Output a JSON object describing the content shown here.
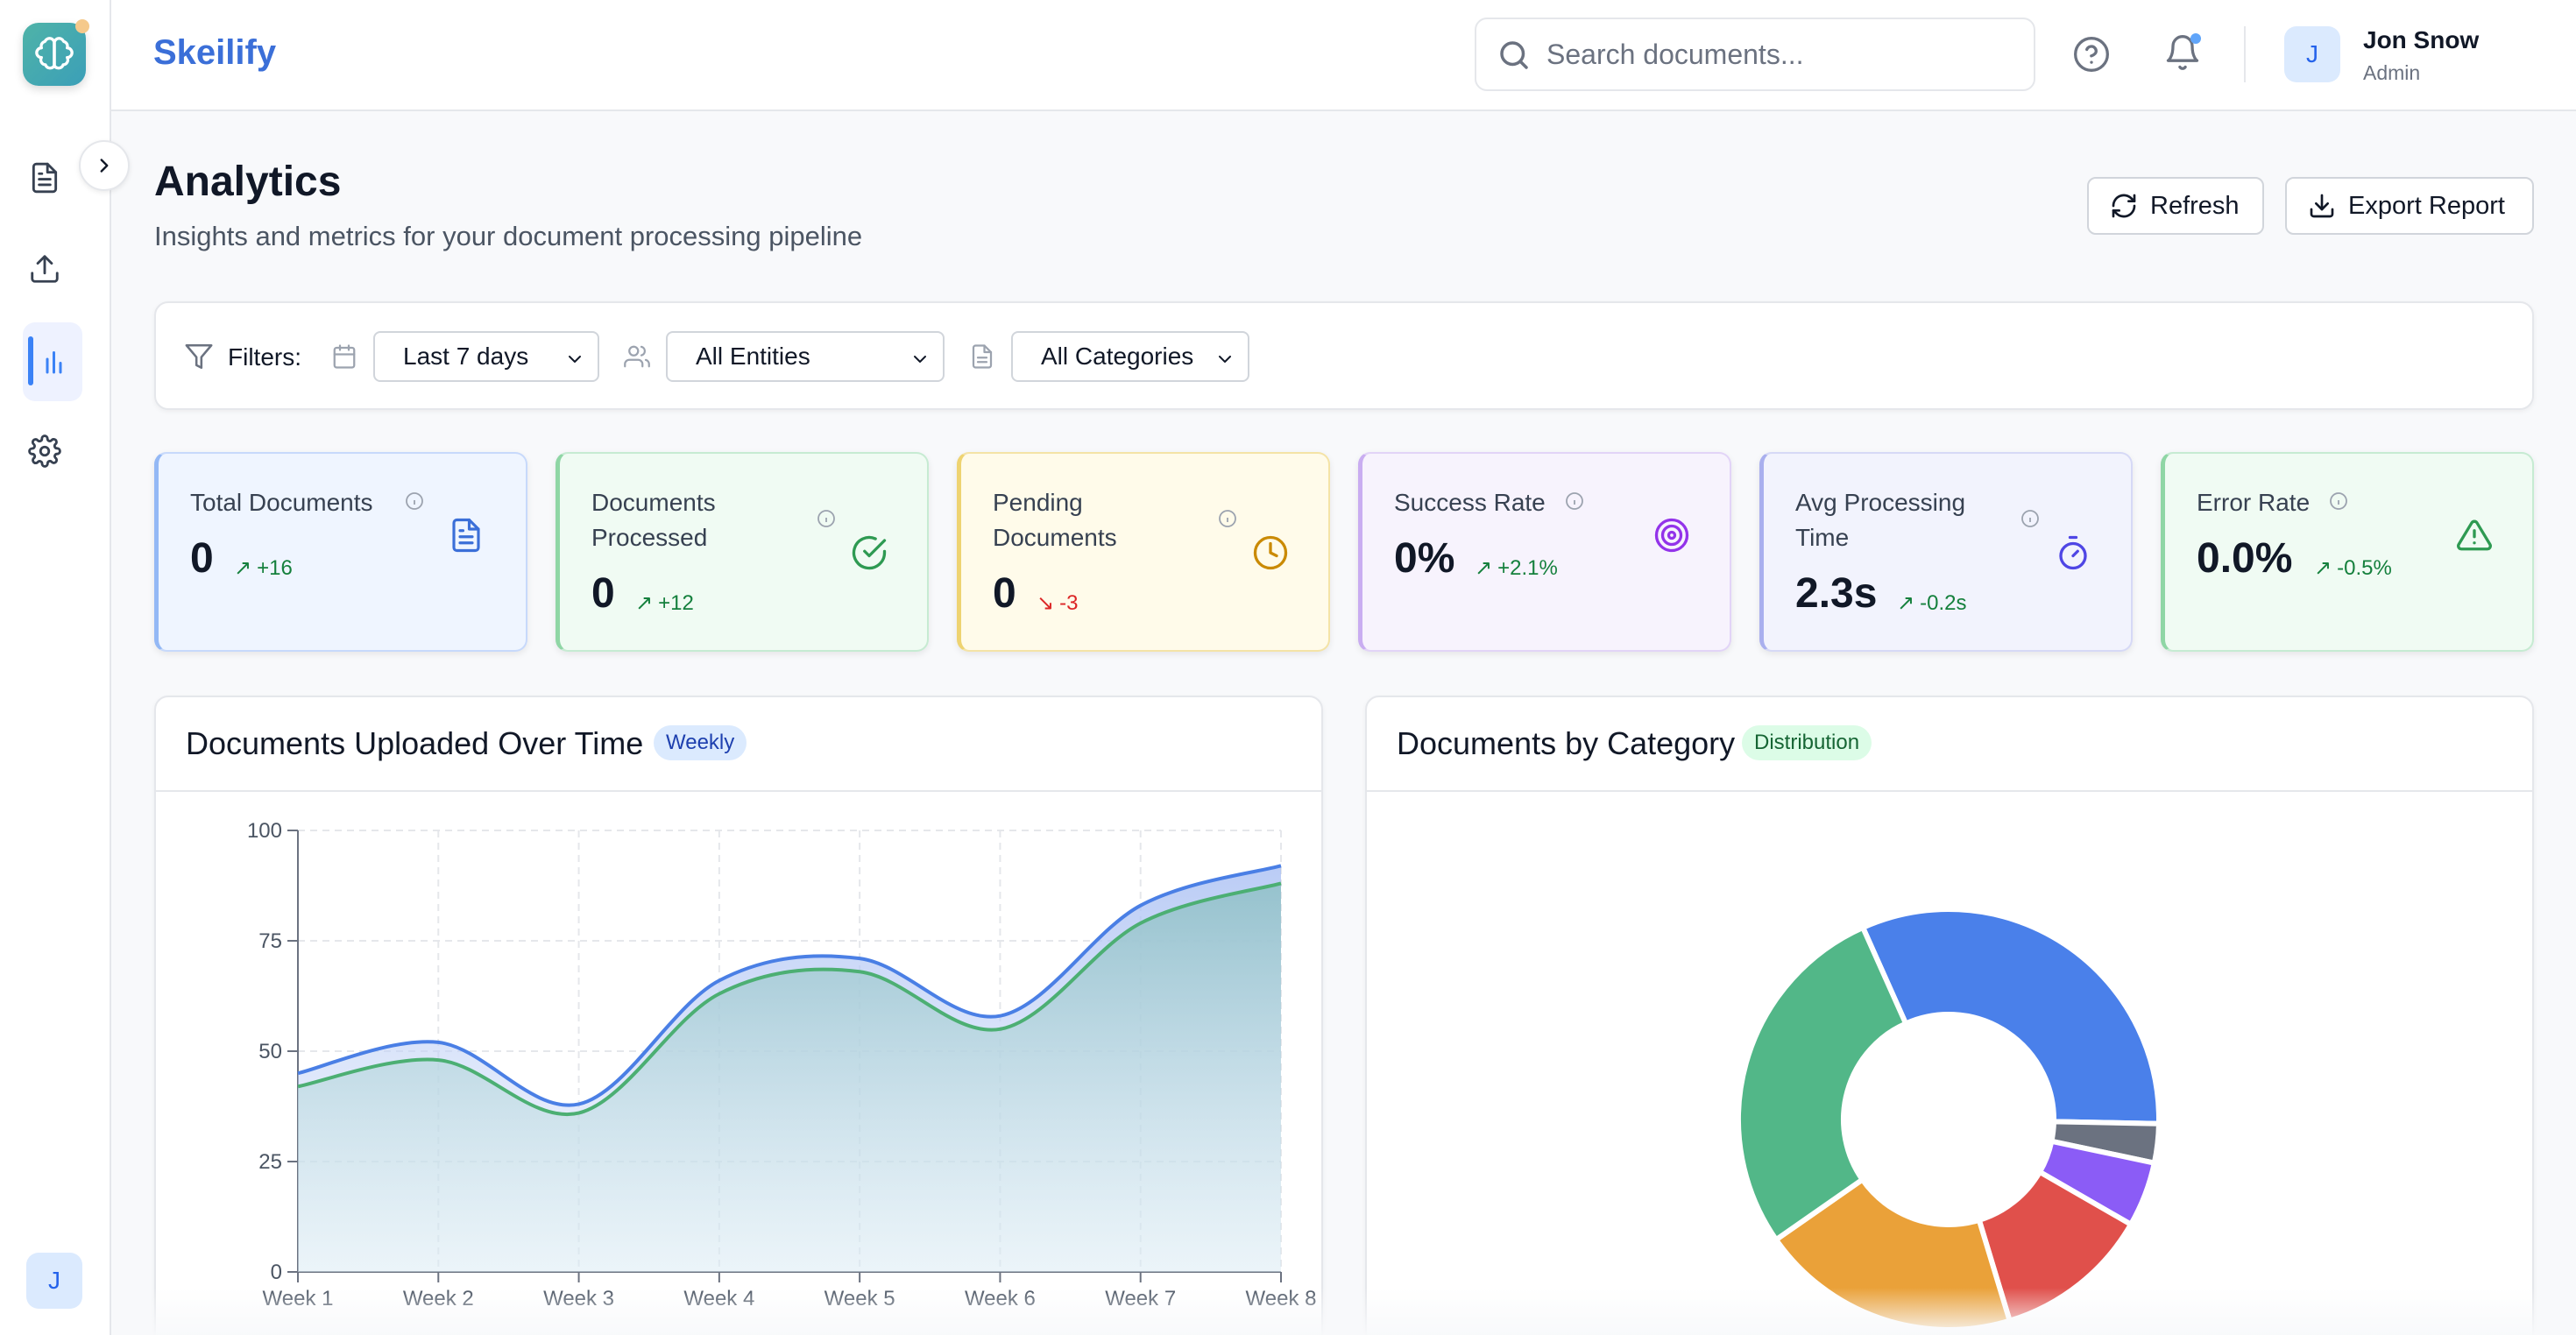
{
  "app": {
    "brand": "Skeilify"
  },
  "header": {
    "search_placeholder": "Search documents...",
    "user": {
      "initial": "J",
      "name": "Jon Snow",
      "role": "Admin"
    }
  },
  "sidebar": {
    "items": [
      {
        "name": "documents",
        "icon": "document-icon"
      },
      {
        "name": "upload",
        "icon": "upload-icon"
      },
      {
        "name": "analytics",
        "icon": "bar-chart-icon",
        "active": true
      },
      {
        "name": "settings",
        "icon": "gear-icon"
      }
    ],
    "avatar_initial": "J"
  },
  "page": {
    "title": "Analytics",
    "subtitle": "Insights and metrics for your document processing pipeline",
    "refresh_label": "Refresh",
    "export_label": "Export Report"
  },
  "filters": {
    "label": "Filters:",
    "date": "Last 7 days",
    "entities": "All Entities",
    "categories": "All Categories"
  },
  "stats": [
    {
      "title": "Total Documents",
      "value": "0",
      "delta": "+16",
      "trend": "up",
      "color": "#3b82f6"
    },
    {
      "title": "Documents Processed",
      "value": "0",
      "delta": "+12",
      "trend": "up",
      "color": "#22c55e"
    },
    {
      "title": "Pending Documents",
      "value": "0",
      "delta": "-3",
      "trend": "down",
      "color": "#eab308"
    },
    {
      "title": "Success Rate",
      "value": "0%",
      "delta": "+2.1%",
      "trend": "up",
      "color": "#a855f7"
    },
    {
      "title": "Avg Processing Time",
      "value": "2.3s",
      "delta": "-0.2s",
      "trend": "up",
      "color": "#6366f1"
    },
    {
      "title": "Error Rate",
      "value": "0.0%",
      "delta": "-0.5%",
      "trend": "up",
      "color": "#22c55e"
    }
  ],
  "charts": {
    "uploads": {
      "title": "Documents Uploaded Over Time",
      "badge": "Weekly"
    },
    "category": {
      "title": "Documents by Category",
      "badge": "Distribution"
    }
  },
  "chart_data": [
    {
      "type": "area",
      "x": [
        "Week 1",
        "Week 2",
        "Week 3",
        "Week 4",
        "Week 5",
        "Week 6",
        "Week 7",
        "Week 8"
      ],
      "ylim": [
        0,
        100
      ],
      "yticks": [
        0,
        25,
        50,
        75,
        100
      ],
      "grid": true,
      "series": [
        {
          "values": [
            45,
            52,
            38,
            66,
            71,
            58,
            83,
            92
          ],
          "color": "#4a7fe5"
        },
        {
          "values": [
            42,
            48,
            36,
            63,
            68,
            55,
            79,
            88
          ],
          "color": "#4caf73"
        }
      ]
    },
    {
      "type": "pie",
      "donut": true,
      "slices": [
        {
          "value": 32,
          "color": "#4a80ea"
        },
        {
          "value": 3,
          "color": "#6b7280"
        },
        {
          "value": 5,
          "color": "#8b5cf6"
        },
        {
          "value": 12,
          "color": "#e0504b"
        },
        {
          "value": 20,
          "color": "#eaa139"
        },
        {
          "value": 28,
          "color": "#52b788"
        }
      ]
    }
  ]
}
